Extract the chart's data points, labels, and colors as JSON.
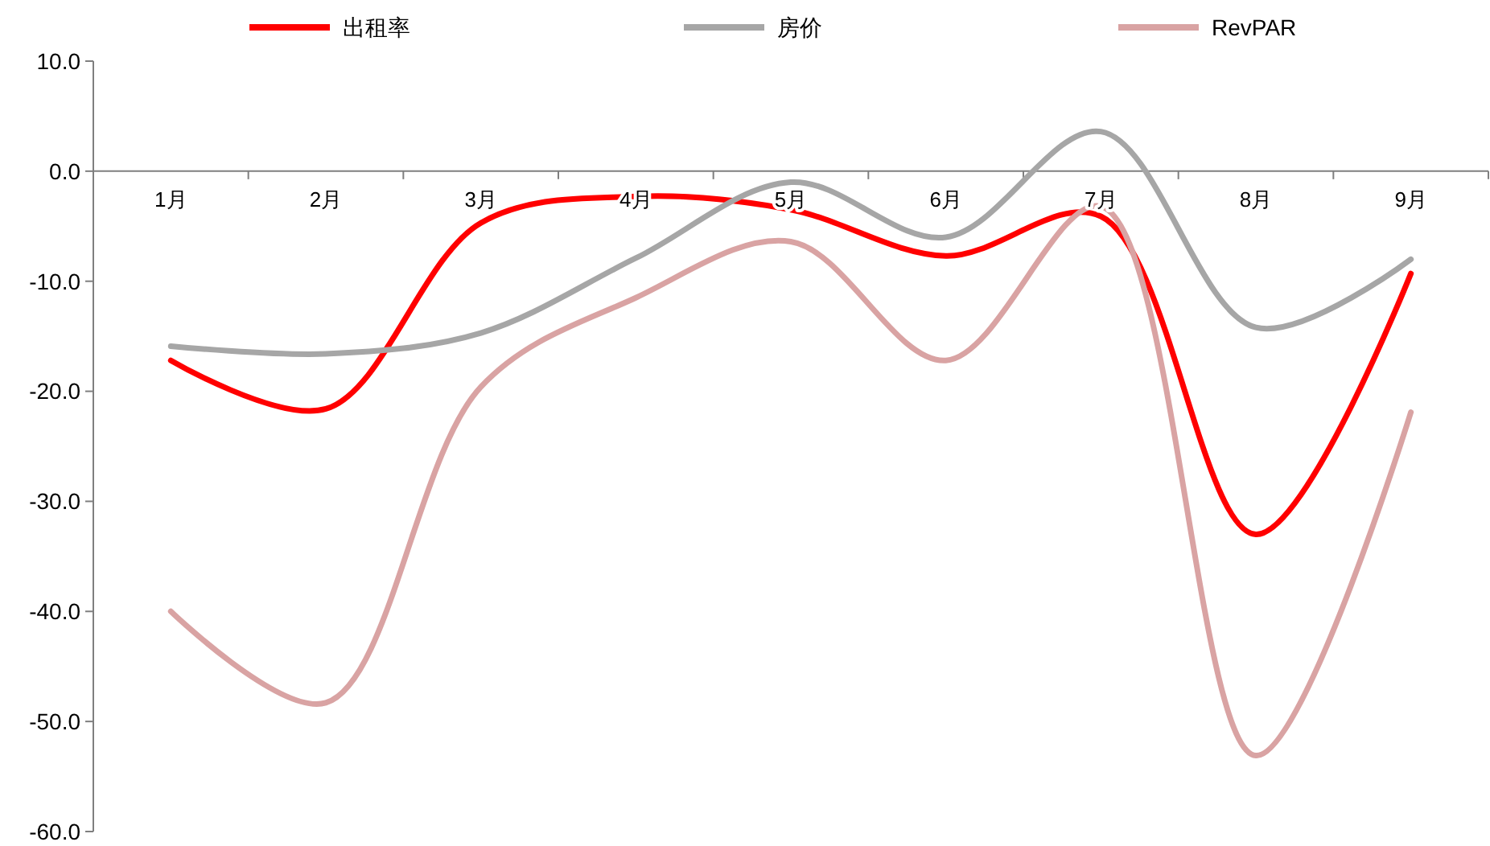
{
  "chart_data": {
    "type": "line",
    "categories": [
      "1月",
      "2月",
      "3月",
      "4月",
      "5月",
      "6月",
      "7月",
      "8月",
      "9月"
    ],
    "series": [
      {
        "name": "出租率",
        "color": "#ff0000",
        "values": [
          -17.2,
          -21.6,
          -4.7,
          -2.3,
          -3.5,
          -7.7,
          -4.1,
          -33.0,
          -9.3
        ]
      },
      {
        "name": "房价",
        "color": "#a6a6a6",
        "values": [
          -15.9,
          -16.6,
          -14.7,
          -7.9,
          -1.0,
          -6.0,
          3.6,
          -14.2,
          -8.0
        ]
      },
      {
        "name": "RevPAR",
        "color": "#d9a3a3",
        "values": [
          -40.0,
          -48.3,
          -19.6,
          -11.5,
          -6.4,
          -17.2,
          -3.2,
          -53.1,
          -21.9
        ]
      }
    ],
    "ylim": [
      -60,
      10
    ],
    "yticks": [
      {
        "value": 10,
        "label": "10.0"
      },
      {
        "value": 0,
        "label": "0.0"
      },
      {
        "value": -10,
        "label": "-10.0"
      },
      {
        "value": -20,
        "label": "-20.0"
      },
      {
        "value": -30,
        "label": "-30.0"
      },
      {
        "value": -40,
        "label": "-40.0"
      },
      {
        "value": -50,
        "label": "-50.0"
      },
      {
        "value": -60,
        "label": "-60.0"
      }
    ],
    "grid": false,
    "legend": "top",
    "marker": "none",
    "line_style": "solid"
  }
}
